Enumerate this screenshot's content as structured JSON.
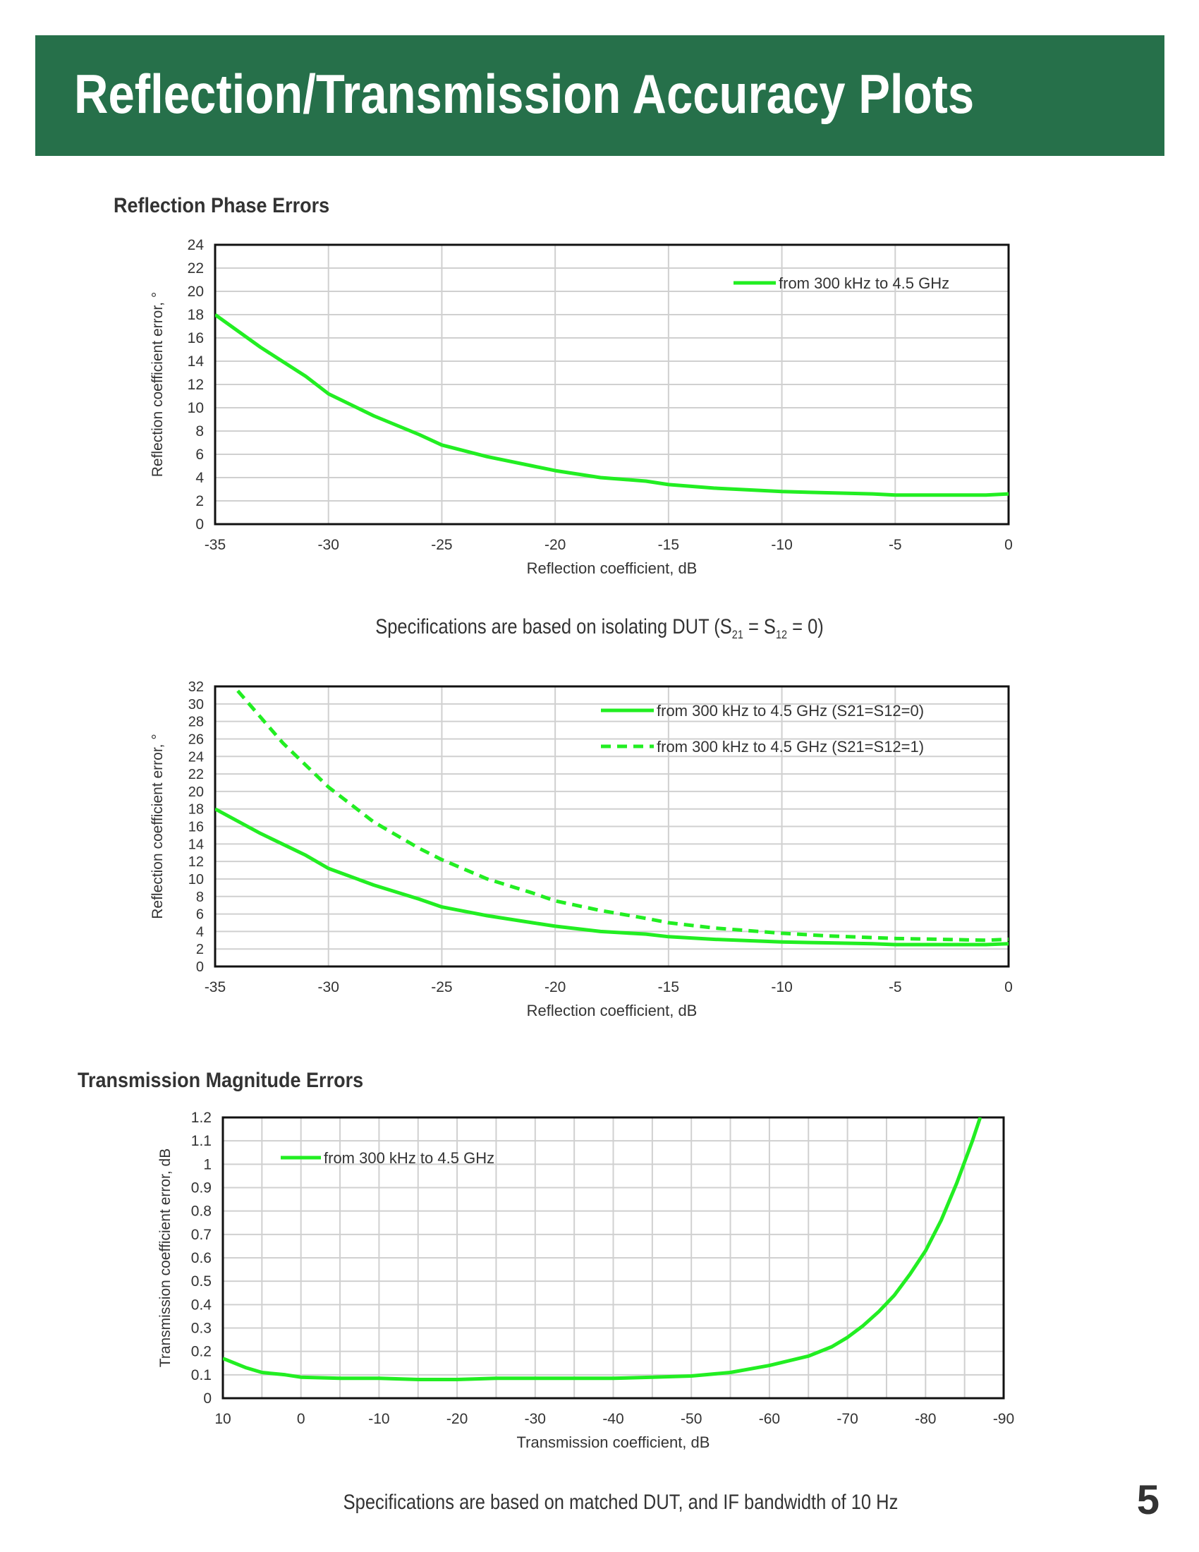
{
  "header": {
    "title": "Reflection/Transmission Accuracy Plots"
  },
  "sections": {
    "reflection_title": "Reflection Phase Errors",
    "transmission_title": "Transmission Magnitude Errors"
  },
  "notes": {
    "isolating_prefix": "Specifications are based on isolating DUT (S",
    "isolating_sub1": "21",
    "isolating_mid": " = S",
    "isolating_sub2": "12",
    "isolating_suffix": " = 0)",
    "matched": "Specifications are based on matched DUT, and IF bandwidth of 10 Hz"
  },
  "page_number": "5",
  "colors": {
    "banner": "#26704a",
    "series": "#22ee22",
    "grid": "#d0d0d0"
  },
  "chart_data": [
    {
      "type": "line",
      "xlabel": "Reflection coefficient, dB",
      "ylabel": "Reflection coefficient error, °",
      "xlim": [
        -35,
        0
      ],
      "ylim": [
        0,
        24
      ],
      "xticks": [
        -35,
        -30,
        -25,
        -20,
        -15,
        -10,
        -5,
        0
      ],
      "yticks": [
        0,
        2,
        4,
        6,
        8,
        10,
        12,
        14,
        16,
        18,
        20,
        22,
        24
      ],
      "xgrid": [
        -35,
        -30,
        -25,
        -20,
        -15,
        -10,
        -5,
        0
      ],
      "ygrid": [
        0,
        2,
        4,
        6,
        8,
        10,
        12,
        14,
        16,
        18,
        20,
        22,
        24
      ],
      "legend_position": "top-right",
      "series": [
        {
          "name": "from 300 kHz to 4.5 GHz",
          "style": "solid",
          "x": [
            -35,
            -33,
            -31,
            -30,
            -28,
            -26,
            -25,
            -23,
            -21,
            -20,
            -18,
            -16,
            -15,
            -13,
            -11,
            -10,
            -8,
            -6,
            -5,
            -3,
            -1,
            0
          ],
          "y": [
            18,
            15.2,
            12.7,
            11.2,
            9.3,
            7.7,
            6.8,
            5.8,
            5.0,
            4.6,
            4.0,
            3.7,
            3.4,
            3.1,
            2.9,
            2.8,
            2.7,
            2.6,
            2.5,
            2.5,
            2.5,
            2.6
          ]
        }
      ]
    },
    {
      "type": "line",
      "xlabel": "Reflection coefficient, dB",
      "ylabel": "Reflection coefficient error, °",
      "xlim": [
        -35,
        0
      ],
      "ylim": [
        0,
        32
      ],
      "xticks": [
        -35,
        -30,
        -25,
        -20,
        -15,
        -10,
        -5,
        0
      ],
      "yticks": [
        0,
        2,
        4,
        6,
        8,
        10,
        12,
        14,
        16,
        18,
        20,
        22,
        24,
        26,
        28,
        30,
        32
      ],
      "xgrid": [
        -35,
        -30,
        -25,
        -20,
        -15,
        -10,
        -5,
        0
      ],
      "ygrid": [
        0,
        2,
        4,
        6,
        8,
        10,
        12,
        14,
        16,
        18,
        20,
        22,
        24,
        26,
        28,
        30,
        32
      ],
      "legend_position": "top-right",
      "series": [
        {
          "name": "from 300 kHz to 4.5 GHz (S21=S12=0)",
          "style": "solid",
          "x": [
            -35,
            -33,
            -31,
            -30,
            -28,
            -26,
            -25,
            -23,
            -21,
            -20,
            -18,
            -16,
            -15,
            -13,
            -11,
            -10,
            -8,
            -6,
            -5,
            -3,
            -1,
            0
          ],
          "y": [
            18,
            15.2,
            12.7,
            11.2,
            9.3,
            7.7,
            6.8,
            5.8,
            5.0,
            4.6,
            4.0,
            3.7,
            3.4,
            3.1,
            2.9,
            2.8,
            2.7,
            2.6,
            2.5,
            2.5,
            2.5,
            2.6
          ]
        },
        {
          "name": "from 300 kHz to 4.5 GHz (S21=S12=1)",
          "style": "dashed",
          "x": [
            -34,
            -32,
            -30,
            -28,
            -26,
            -25,
            -23,
            -21,
            -20,
            -18,
            -16,
            -15,
            -13,
            -11,
            -10,
            -8,
            -6,
            -5,
            -3,
            -1,
            0
          ],
          "y": [
            31.5,
            25.5,
            20.5,
            16.5,
            13.5,
            12.2,
            10,
            8.4,
            7.5,
            6.4,
            5.5,
            5.0,
            4.4,
            4.0,
            3.8,
            3.5,
            3.3,
            3.2,
            3.1,
            3.0,
            3.1
          ]
        }
      ]
    },
    {
      "type": "line",
      "xlabel": "Transmission coefficient, dB",
      "ylabel": "Transmission coefficient error, dB",
      "xlim": [
        10,
        -90
      ],
      "ylim": [
        0,
        1.2
      ],
      "xticks": [
        10,
        0,
        -10,
        -20,
        -30,
        -40,
        -50,
        -60,
        -70,
        -80,
        -90
      ],
      "yticks": [
        0,
        0.1,
        0.2,
        0.3,
        0.4,
        0.5,
        0.6,
        0.7,
        0.8,
        0.9,
        1,
        1.1,
        1.2
      ],
      "xgrid": [
        10,
        5,
        0,
        -5,
        -10,
        -15,
        -20,
        -25,
        -30,
        -35,
        -40,
        -45,
        -50,
        -55,
        -60,
        -65,
        -70,
        -75,
        -80,
        -85,
        -90
      ],
      "ygrid": [
        0,
        0.1,
        0.2,
        0.3,
        0.4,
        0.5,
        0.6,
        0.7,
        0.8,
        0.9,
        1,
        1.1,
        1.2
      ],
      "legend_position": "top-left",
      "series": [
        {
          "name": "from 300 kHz to 4.5 GHz",
          "style": "solid",
          "x": [
            10,
            7,
            5,
            2,
            0,
            -5,
            -10,
            -15,
            -20,
            -25,
            -30,
            -35,
            -40,
            -45,
            -50,
            -55,
            -60,
            -65,
            -68,
            -70,
            -72,
            -74,
            -76,
            -78,
            -80,
            -82,
            -84,
            -86,
            -87
          ],
          "y": [
            0.17,
            0.13,
            0.11,
            0.1,
            0.09,
            0.085,
            0.085,
            0.08,
            0.08,
            0.085,
            0.085,
            0.085,
            0.085,
            0.09,
            0.095,
            0.11,
            0.14,
            0.18,
            0.22,
            0.26,
            0.31,
            0.37,
            0.44,
            0.53,
            0.63,
            0.76,
            0.92,
            1.1,
            1.2
          ]
        }
      ]
    }
  ]
}
